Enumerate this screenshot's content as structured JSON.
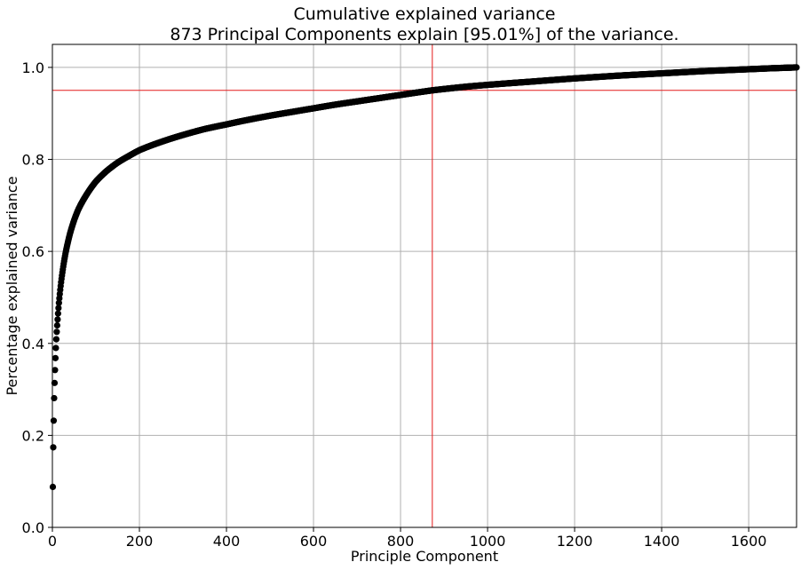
{
  "chart_data": {
    "type": "scatter",
    "title": "Cumulative explained variance",
    "subtitle": "873 Principal Components explain [95.01%] of the variance.",
    "xlabel": "Principle Component",
    "ylabel": "Percentage explained variance",
    "xlim": [
      0,
      1710
    ],
    "ylim": [
      0,
      1.05
    ],
    "xticks": [
      0,
      200,
      400,
      600,
      800,
      1000,
      1200,
      1400,
      1600
    ],
    "yticks": [
      0.0,
      0.2,
      0.4,
      0.6,
      0.8,
      1.0
    ],
    "grid": true,
    "point_color": "#000000",
    "threshold_color": "#e41a1c",
    "threshold": {
      "x": 873,
      "y": 0.95
    },
    "total_components": 1710,
    "series": [
      {
        "points": [
          [
            1,
            0.088
          ],
          [
            2,
            0.174
          ],
          [
            3,
            0.232
          ],
          [
            4,
            0.281
          ],
          [
            5,
            0.314
          ],
          [
            6,
            0.342
          ],
          [
            7,
            0.368
          ],
          [
            8,
            0.39
          ],
          [
            9,
            0.409
          ],
          [
            10,
            0.425
          ],
          [
            12,
            0.452
          ],
          [
            15,
            0.488
          ],
          [
            20,
            0.533
          ],
          [
            25,
            0.567
          ],
          [
            30,
            0.595
          ],
          [
            40,
            0.637
          ],
          [
            50,
            0.668
          ],
          [
            60,
            0.692
          ],
          [
            75,
            0.718
          ],
          [
            100,
            0.752
          ],
          [
            125,
            0.775
          ],
          [
            150,
            0.793
          ],
          [
            175,
            0.807
          ],
          [
            200,
            0.82
          ],
          [
            250,
            0.838
          ],
          [
            300,
            0.853
          ],
          [
            350,
            0.866
          ],
          [
            400,
            0.876
          ],
          [
            450,
            0.886
          ],
          [
            500,
            0.895
          ],
          [
            550,
            0.903
          ],
          [
            600,
            0.911
          ],
          [
            650,
            0.919
          ],
          [
            700,
            0.926
          ],
          [
            750,
            0.933
          ],
          [
            800,
            0.94
          ],
          [
            873,
            0.9501
          ],
          [
            900,
            0.953
          ],
          [
            950,
            0.958
          ],
          [
            1000,
            0.962
          ],
          [
            1100,
            0.969
          ],
          [
            1200,
            0.976
          ],
          [
            1300,
            0.982
          ],
          [
            1400,
            0.987
          ],
          [
            1500,
            0.992
          ],
          [
            1600,
            0.996
          ],
          [
            1650,
            0.998
          ],
          [
            1710,
            1.0
          ]
        ]
      }
    ]
  }
}
